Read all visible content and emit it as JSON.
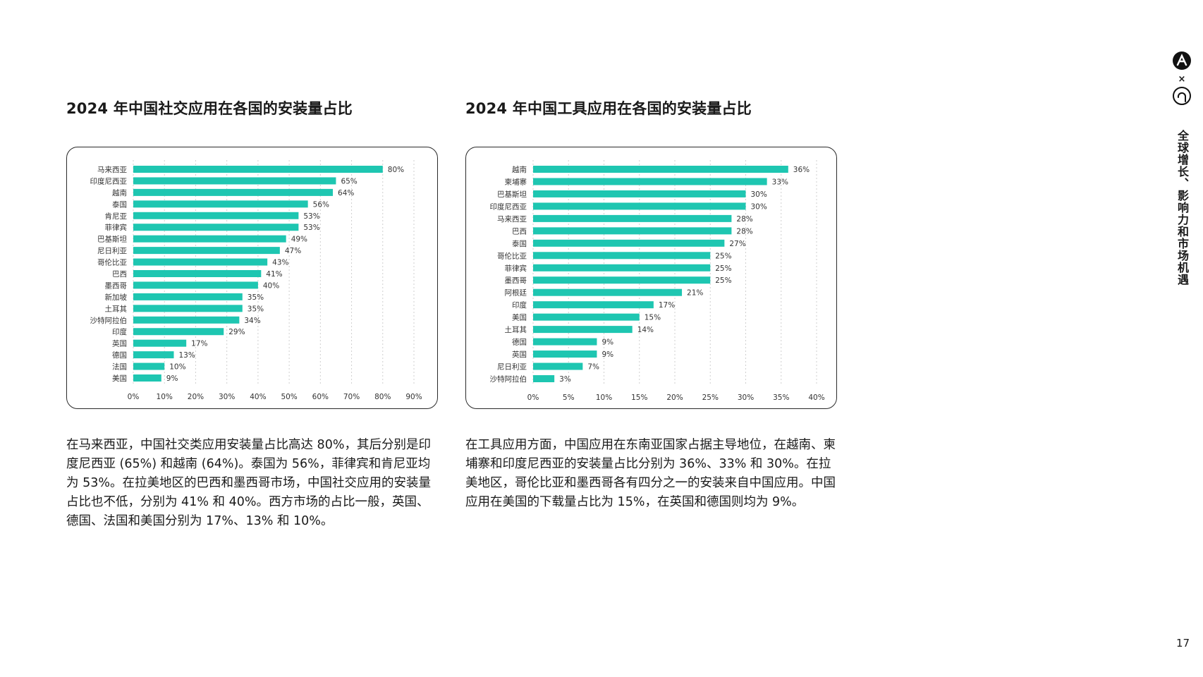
{
  "charts": [
    {
      "title": "2024 年中国社交应用在各国的安装量占比",
      "description": "在马来西亚，中国社交类应用安装量占比高达 80%，其后分别是印度尼西亚 (65%) 和越南 (64%)。泰国为 56%，菲律宾和肯尼亚均为 53%。在拉美地区的巴西和墨西哥市场，中国社交应用的安装量占比也不低，分别为 41% 和 40%。西方市场的占比一般，英国、德国、法国和美国分别为 17%、13% 和 10%。"
    },
    {
      "title": "2024 年中国工具应用在各国的安装量占比",
      "description": "在工具应用方面，中国应用在东南亚国家占据主导地位，在越南、柬埔寨和印度尼西亚的安装量占比分别为 36%、33% 和 30%。在拉美地区，哥伦比亚和墨西哥各有四分之一的安装来自中国应用。中国应用在美国的下载量占比为 15%，在英国和德国则均为 9%。"
    }
  ],
  "chart_data": [
    {
      "type": "bar",
      "orientation": "horizontal",
      "title": "2024 年中国社交应用在各国的安装量占比",
      "categories": [
        "马来西亚",
        "印度尼西亚",
        "越南",
        "泰国",
        "肯尼亚",
        "菲律宾",
        "巴基斯坦",
        "尼日利亚",
        "哥伦比亚",
        "巴西",
        "墨西哥",
        "新加坡",
        "土耳其",
        "沙特阿拉伯",
        "印度",
        "英国",
        "德国",
        "法国",
        "美国"
      ],
      "values": [
        80,
        65,
        64,
        56,
        53,
        53,
        49,
        47,
        43,
        41,
        40,
        35,
        35,
        34,
        29,
        17,
        13,
        10,
        9
      ],
      "value_labels": [
        "80%",
        "65%",
        "64%",
        "56%",
        "53%",
        "53%",
        "49%",
        "47%",
        "43%",
        "41%",
        "40%",
        "35%",
        "35%",
        "34%",
        "29%",
        "17%",
        "13%",
        "10%",
        "9%"
      ],
      "xlim": [
        0,
        90
      ],
      "ticks": [
        0,
        10,
        20,
        30,
        40,
        50,
        60,
        70,
        80,
        90
      ],
      "tick_labels": [
        "0%",
        "10%",
        "20%",
        "30%",
        "40%",
        "50%",
        "60%",
        "70%",
        "80%",
        "90%"
      ],
      "grid": "vertical-dotted",
      "bar_color": "#1ec6b1"
    },
    {
      "type": "bar",
      "orientation": "horizontal",
      "title": "2024 年中国工具应用在各国的安装量占比",
      "categories": [
        "越南",
        "柬埔寨",
        "巴基斯坦",
        "印度尼西亚",
        "马来西亚",
        "巴西",
        "泰国",
        "哥伦比亚",
        "菲律宾",
        "墨西哥",
        "阿根廷",
        "印度",
        "美国",
        "土耳其",
        "德国",
        "英国",
        "尼日利亚",
        "沙特阿拉伯"
      ],
      "values": [
        36,
        33,
        30,
        30,
        28,
        28,
        27,
        25,
        25,
        25,
        21,
        17,
        15,
        14,
        9,
        9,
        7,
        3
      ],
      "value_labels": [
        "36%",
        "33%",
        "30%",
        "30%",
        "28%",
        "28%",
        "27%",
        "25%",
        "25%",
        "25%",
        "21%",
        "17%",
        "15%",
        "14%",
        "9%",
        "9%",
        "7%",
        "3%"
      ],
      "xlim": [
        0,
        40
      ],
      "ticks": [
        0,
        5,
        10,
        15,
        20,
        25,
        30,
        35,
        40
      ],
      "tick_labels": [
        "0%",
        "5%",
        "10%",
        "15%",
        "20%",
        "25%",
        "30%",
        "35%",
        "40%"
      ],
      "grid": "vertical-dotted",
      "bar_color": "#1ec6b1"
    }
  ],
  "sidebar": {
    "cross": "×",
    "vertical_title": "全球增长、影响力和市场机遇",
    "icons": [
      "brand-logo-icon",
      "partner-logo-icon"
    ]
  },
  "page_number": "17",
  "colors": {
    "bar": "#1ec6b1",
    "border": "#2a2a2a",
    "text": "#1a1a1a",
    "grid": "#cfcfcf"
  }
}
